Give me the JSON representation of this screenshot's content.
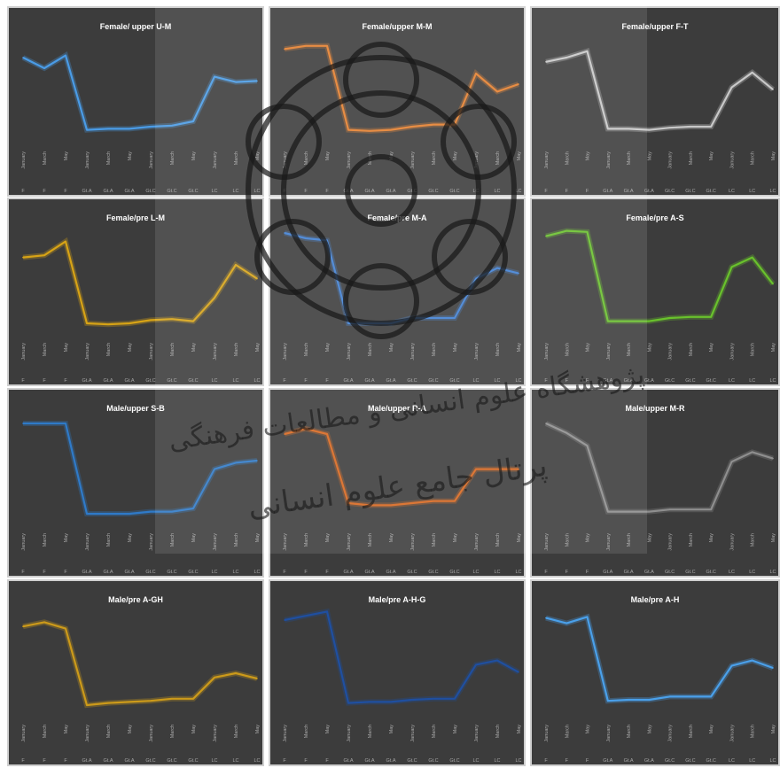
{
  "x_month_labels": [
    "January",
    "March",
    "May",
    "January",
    "March",
    "May",
    "January",
    "March",
    "May",
    "January",
    "March",
    "May"
  ],
  "x_group_labels": [
    "F",
    "F",
    "F",
    "Gt.A",
    "Gt.A",
    "Gt.A",
    "Gt.C",
    "Gt.C",
    "Gt.C",
    "LC",
    "LC",
    "LC"
  ],
  "chart_data": [
    {
      "type": "line",
      "title": "Female/ upper U-M",
      "categories": [
        "January",
        "March",
        "May",
        "January",
        "March",
        "May",
        "January",
        "March",
        "May",
        "January",
        "March",
        "May"
      ],
      "groups": [
        "F",
        "F",
        "F",
        "Gt.A",
        "Gt.A",
        "Gt.A",
        "Gt.C",
        "Gt.C",
        "Gt.C",
        "LC",
        "LC",
        "LC"
      ],
      "series": [
        {
          "values": [
            80,
            70,
            82,
            12,
            13,
            13,
            15,
            16,
            20,
            62,
            57,
            58
          ]
        }
      ],
      "color": "#4a9be6",
      "ylim": [
        0,
        100
      ]
    },
    {
      "type": "line",
      "title": "Female/upper M-M",
      "categories": [
        "January",
        "March",
        "May",
        "January",
        "March",
        "May",
        "January",
        "March",
        "May",
        "January",
        "March",
        "May"
      ],
      "groups": [
        "F",
        "F",
        "F",
        "Gt.A",
        "Gt.A",
        "Gt.A",
        "Gt.C",
        "Gt.C",
        "Gt.C",
        "LC",
        "LC",
        "LC"
      ],
      "series": [
        {
          "values": [
            88,
            91,
            91,
            12,
            11,
            12,
            15,
            17,
            17,
            65,
            48,
            55
          ]
        }
      ],
      "color": "#e57f2e",
      "ylim": [
        0,
        100
      ]
    },
    {
      "type": "line",
      "title": "Female/upper F-T",
      "categories": [
        "January",
        "March",
        "May",
        "January",
        "March",
        "May",
        "January",
        "March",
        "May",
        "January",
        "March",
        "May"
      ],
      "groups": [
        "F",
        "F",
        "F",
        "Gt.A",
        "Gt.A",
        "Gt.A",
        "Gt.C",
        "Gt.C",
        "Gt.C",
        "LC",
        "LC",
        "LC"
      ],
      "series": [
        {
          "values": [
            76,
            80,
            86,
            13,
            13,
            12,
            14,
            15,
            15,
            52,
            66,
            50
          ]
        }
      ],
      "color": "#c8c8c8",
      "ylim": [
        0,
        100
      ]
    },
    {
      "type": "line",
      "title": "Female/pre L-M",
      "categories": [
        "January",
        "March",
        "May",
        "January",
        "March",
        "May",
        "January",
        "March",
        "May",
        "January",
        "March",
        "May"
      ],
      "groups": [
        "F",
        "F",
        "F",
        "Gt.A",
        "Gt.A",
        "Gt.A",
        "Gt.C",
        "Gt.C",
        "Gt.C",
        "LC",
        "LC",
        "LC"
      ],
      "series": [
        {
          "values": [
            72,
            74,
            87,
            10,
            9,
            10,
            13,
            14,
            12,
            34,
            65,
            52
          ]
        }
      ],
      "color": "#d7a316",
      "ylim": [
        0,
        100
      ]
    },
    {
      "type": "line",
      "title": "Female/pre M-A",
      "categories": [
        "January",
        "March",
        "May",
        "January",
        "March",
        "May",
        "January",
        "March",
        "May",
        "January",
        "March",
        "May"
      ],
      "groups": [
        "F",
        "F",
        "F",
        "Gt.A",
        "Gt.A",
        "Gt.A",
        "Gt.C",
        "Gt.C",
        "Gt.C",
        "LC",
        "LC",
        "LC"
      ],
      "series": [
        {
          "values": [
            95,
            90,
            88,
            10,
            10,
            10,
            15,
            15,
            15,
            52,
            62,
            57
          ]
        }
      ],
      "color": "#3f7fd2",
      "ylim": [
        0,
        100
      ]
    },
    {
      "type": "line",
      "title": "Female/pre A-S",
      "categories": [
        "January",
        "March",
        "May",
        "January",
        "March",
        "May",
        "January",
        "March",
        "May",
        "January",
        "March",
        "May"
      ],
      "groups": [
        "F",
        "F",
        "F",
        "Gt.A",
        "Gt.A",
        "Gt.A",
        "Gt.C",
        "Gt.C",
        "Gt.C",
        "LC",
        "LC",
        "LC"
      ],
      "series": [
        {
          "values": [
            92,
            97,
            96,
            12,
            12,
            12,
            15,
            16,
            16,
            63,
            72,
            47
          ]
        }
      ],
      "color": "#69c22c",
      "ylim": [
        0,
        100
      ]
    },
    {
      "type": "line",
      "title": "Male/upper S-B",
      "categories": [
        "January",
        "March",
        "May",
        "January",
        "March",
        "May",
        "January",
        "March",
        "May",
        "January",
        "March",
        "May"
      ],
      "groups": [
        "F",
        "F",
        "F",
        "Gt.A",
        "Gt.A",
        "Gt.A",
        "Gt.C",
        "Gt.C",
        "Gt.C",
        "LC",
        "LC",
        "LC"
      ],
      "series": [
        {
          "values": [
            95,
            95,
            95,
            10,
            10,
            10,
            12,
            12,
            15,
            52,
            58,
            60
          ]
        }
      ],
      "color": "#2f7ac8",
      "ylim": [
        0,
        100
      ]
    },
    {
      "type": "line",
      "title": "Male/upper R-A",
      "categories": [
        "January",
        "March",
        "May",
        "January",
        "March",
        "May",
        "January",
        "March",
        "May",
        "January",
        "March",
        "May"
      ],
      "groups": [
        "F",
        "F",
        "F",
        "Gt.A",
        "Gt.A",
        "Gt.A",
        "Gt.C",
        "Gt.C",
        "Gt.C",
        "LC",
        "LC",
        "LC"
      ],
      "series": [
        {
          "values": [
            85,
            90,
            85,
            20,
            18,
            18,
            20,
            22,
            22,
            52,
            52,
            52
          ]
        }
      ],
      "color": "#d8671e",
      "ylim": [
        0,
        100
      ]
    },
    {
      "type": "line",
      "title": "Male/upper M-R",
      "categories": [
        "January",
        "March",
        "May",
        "January",
        "March",
        "May",
        "January",
        "March",
        "May",
        "January",
        "March",
        "May"
      ],
      "groups": [
        "F",
        "F",
        "F",
        "Gt.A",
        "Gt.A",
        "Gt.A",
        "Gt.C",
        "Gt.C",
        "Gt.C",
        "LC",
        "LC",
        "LC"
      ],
      "series": [
        {
          "values": [
            95,
            86,
            74,
            12,
            12,
            12,
            14,
            14,
            14,
            59,
            68,
            62
          ]
        }
      ],
      "color": "#8e8e8e",
      "ylim": [
        0,
        100
      ]
    },
    {
      "type": "line",
      "title": "Male/pre A-GH",
      "categories": [
        "January",
        "March",
        "May",
        "January",
        "March",
        "May",
        "January",
        "March",
        "May",
        "January",
        "March",
        "May"
      ],
      "groups": [
        "F",
        "F",
        "F",
        "Gt.A",
        "Gt.A",
        "Gt.A",
        "Gt.C",
        "Gt.C",
        "Gt.C",
        "LC",
        "LC",
        "LC"
      ],
      "series": [
        {
          "values": [
            84,
            88,
            82,
            10,
            12,
            13,
            14,
            16,
            16,
            36,
            40,
            35
          ]
        }
      ],
      "color": "#cc9a1a",
      "ylim": [
        0,
        100
      ]
    },
    {
      "type": "line",
      "title": "Male/pre A-H-G",
      "categories": [
        "January",
        "March",
        "May",
        "January",
        "March",
        "May",
        "January",
        "March",
        "May",
        "January",
        "March",
        "May"
      ],
      "groups": [
        "F",
        "F",
        "F",
        "Gt.A",
        "Gt.A",
        "Gt.A",
        "Gt.C",
        "Gt.C",
        "Gt.C",
        "LC",
        "LC",
        "LC"
      ],
      "series": [
        {
          "values": [
            90,
            94,
            98,
            12,
            13,
            13,
            15,
            16,
            16,
            48,
            52,
            41
          ]
        }
      ],
      "color": "#1f4fa0",
      "ylim": [
        0,
        100
      ]
    },
    {
      "type": "line",
      "title": "Male/pre A-H",
      "categories": [
        "January",
        "March",
        "May",
        "January",
        "March",
        "May",
        "January",
        "March",
        "May",
        "January",
        "March",
        "May"
      ],
      "groups": [
        "F",
        "F",
        "F",
        "Gt.A",
        "Gt.A",
        "Gt.A",
        "Gt.C",
        "Gt.C",
        "Gt.C",
        "LC",
        "LC",
        "LC"
      ],
      "series": [
        {
          "values": [
            92,
            87,
            93,
            14,
            15,
            15,
            18,
            18,
            18,
            47,
            52,
            45
          ]
        }
      ],
      "color": "#4aa0ea",
      "ylim": [
        0,
        100
      ]
    }
  ],
  "watermark_text": [
    "پژوهشگاه علوم انسانی و مطالعات فرهنگی",
    "پرتال جامع علوم انسانی"
  ]
}
